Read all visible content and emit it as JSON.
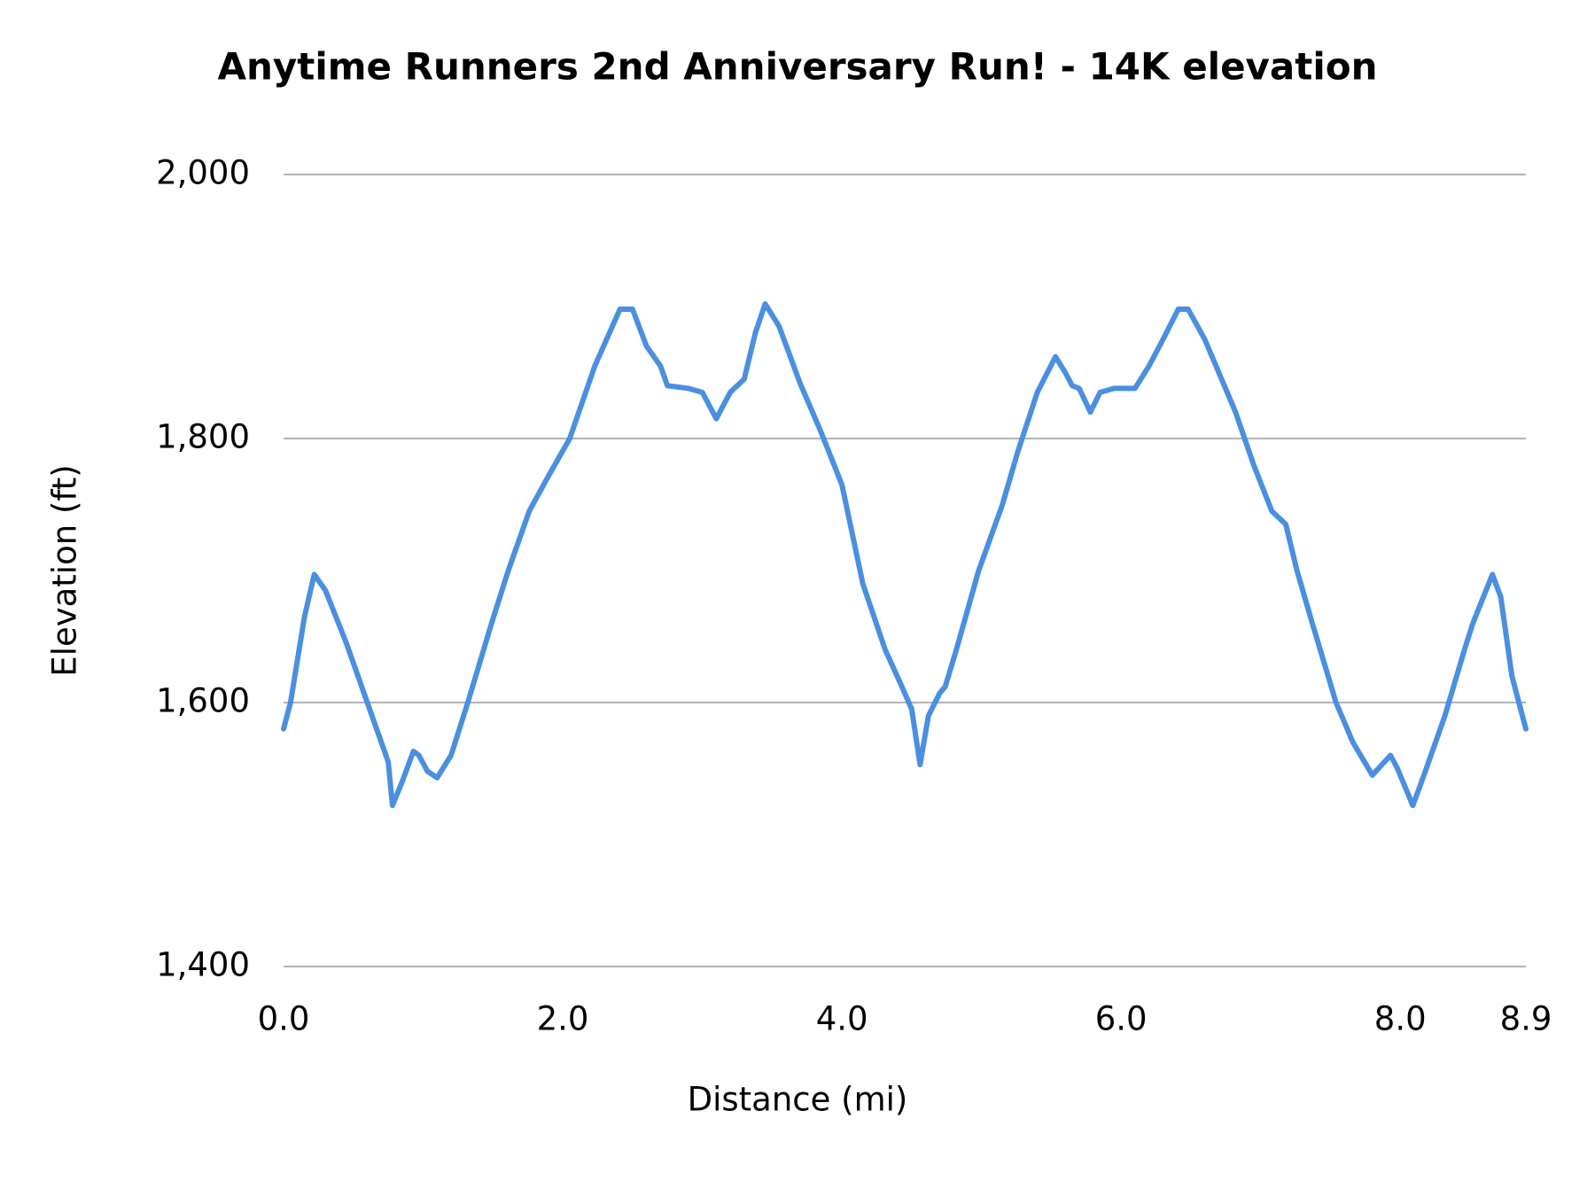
{
  "chart_data": {
    "type": "line",
    "title": "Anytime Runners 2nd Anniversary Run! - 14K elevation",
    "x_label": "Distance (mi)",
    "y_label": "Elevation (ft)",
    "x": [
      0.0,
      0.05,
      0.15,
      0.22,
      0.3,
      0.45,
      0.6,
      0.75,
      0.78,
      0.85,
      0.93,
      0.97,
      1.03,
      1.1,
      1.2,
      1.32,
      1.49,
      1.61,
      1.76,
      1.9,
      2.05,
      2.23,
      2.41,
      2.5,
      2.6,
      2.7,
      2.75,
      2.9,
      3.0,
      3.1,
      3.2,
      3.3,
      3.38,
      3.45,
      3.55,
      3.7,
      3.85,
      4.0,
      4.15,
      4.31,
      4.43,
      4.5,
      4.56,
      4.62,
      4.7,
      4.74,
      4.82,
      4.98,
      5.15,
      5.26,
      5.4,
      5.53,
      5.6,
      5.65,
      5.7,
      5.78,
      5.85,
      5.95,
      6.1,
      6.2,
      6.3,
      6.41,
      6.48,
      6.6,
      6.68,
      6.82,
      6.95,
      7.08,
      7.18,
      7.26,
      7.37,
      7.54,
      7.66,
      7.8,
      7.93,
      7.98,
      8.09,
      8.17,
      8.32,
      8.46,
      8.52,
      8.66,
      8.72,
      8.8,
      8.9
    ],
    "series": [
      {
        "name": "Elevation",
        "color": "#4a8fe0",
        "values": [
          1580,
          1600,
          1665,
          1697,
          1685,
          1645,
          1600,
          1555,
          1522,
          1540,
          1563,
          1560,
          1548,
          1543,
          1560,
          1600,
          1660,
          1700,
          1745,
          1772,
          1800,
          1855,
          1898,
          1898,
          1870,
          1855,
          1840,
          1838,
          1835,
          1815,
          1835,
          1845,
          1880,
          1902,
          1885,
          1842,
          1805,
          1765,
          1690,
          1640,
          1612,
          1595,
          1553,
          1590,
          1607,
          1612,
          1640,
          1700,
          1750,
          1790,
          1835,
          1862,
          1850,
          1840,
          1838,
          1820,
          1835,
          1838,
          1838,
          1855,
          1875,
          1898,
          1898,
          1875,
          1855,
          1820,
          1780,
          1745,
          1735,
          1700,
          1660,
          1600,
          1570,
          1545,
          1560,
          1550,
          1522,
          1545,
          1590,
          1640,
          1660,
          1697,
          1680,
          1620,
          1580
        ]
      }
    ],
    "xlim": [
      0.0,
      8.9
    ],
    "xticks": [
      {
        "value": 0,
        "label": "0.0"
      },
      {
        "value": 2,
        "label": "2.0"
      },
      {
        "value": 4,
        "label": "4.0"
      },
      {
        "value": 6,
        "label": "6.0"
      },
      {
        "value": 8,
        "label": "8.0"
      },
      8.9
    ],
    "ylim": [
      1400,
      2000
    ],
    "yticks": [
      {
        "value": 1400,
        "label": "1,400"
      },
      {
        "value": 1600,
        "label": "1,600"
      },
      {
        "value": 1800,
        "label": "1,800"
      },
      {
        "value": 2000,
        "label": "2,000"
      }
    ],
    "grid": true
  }
}
